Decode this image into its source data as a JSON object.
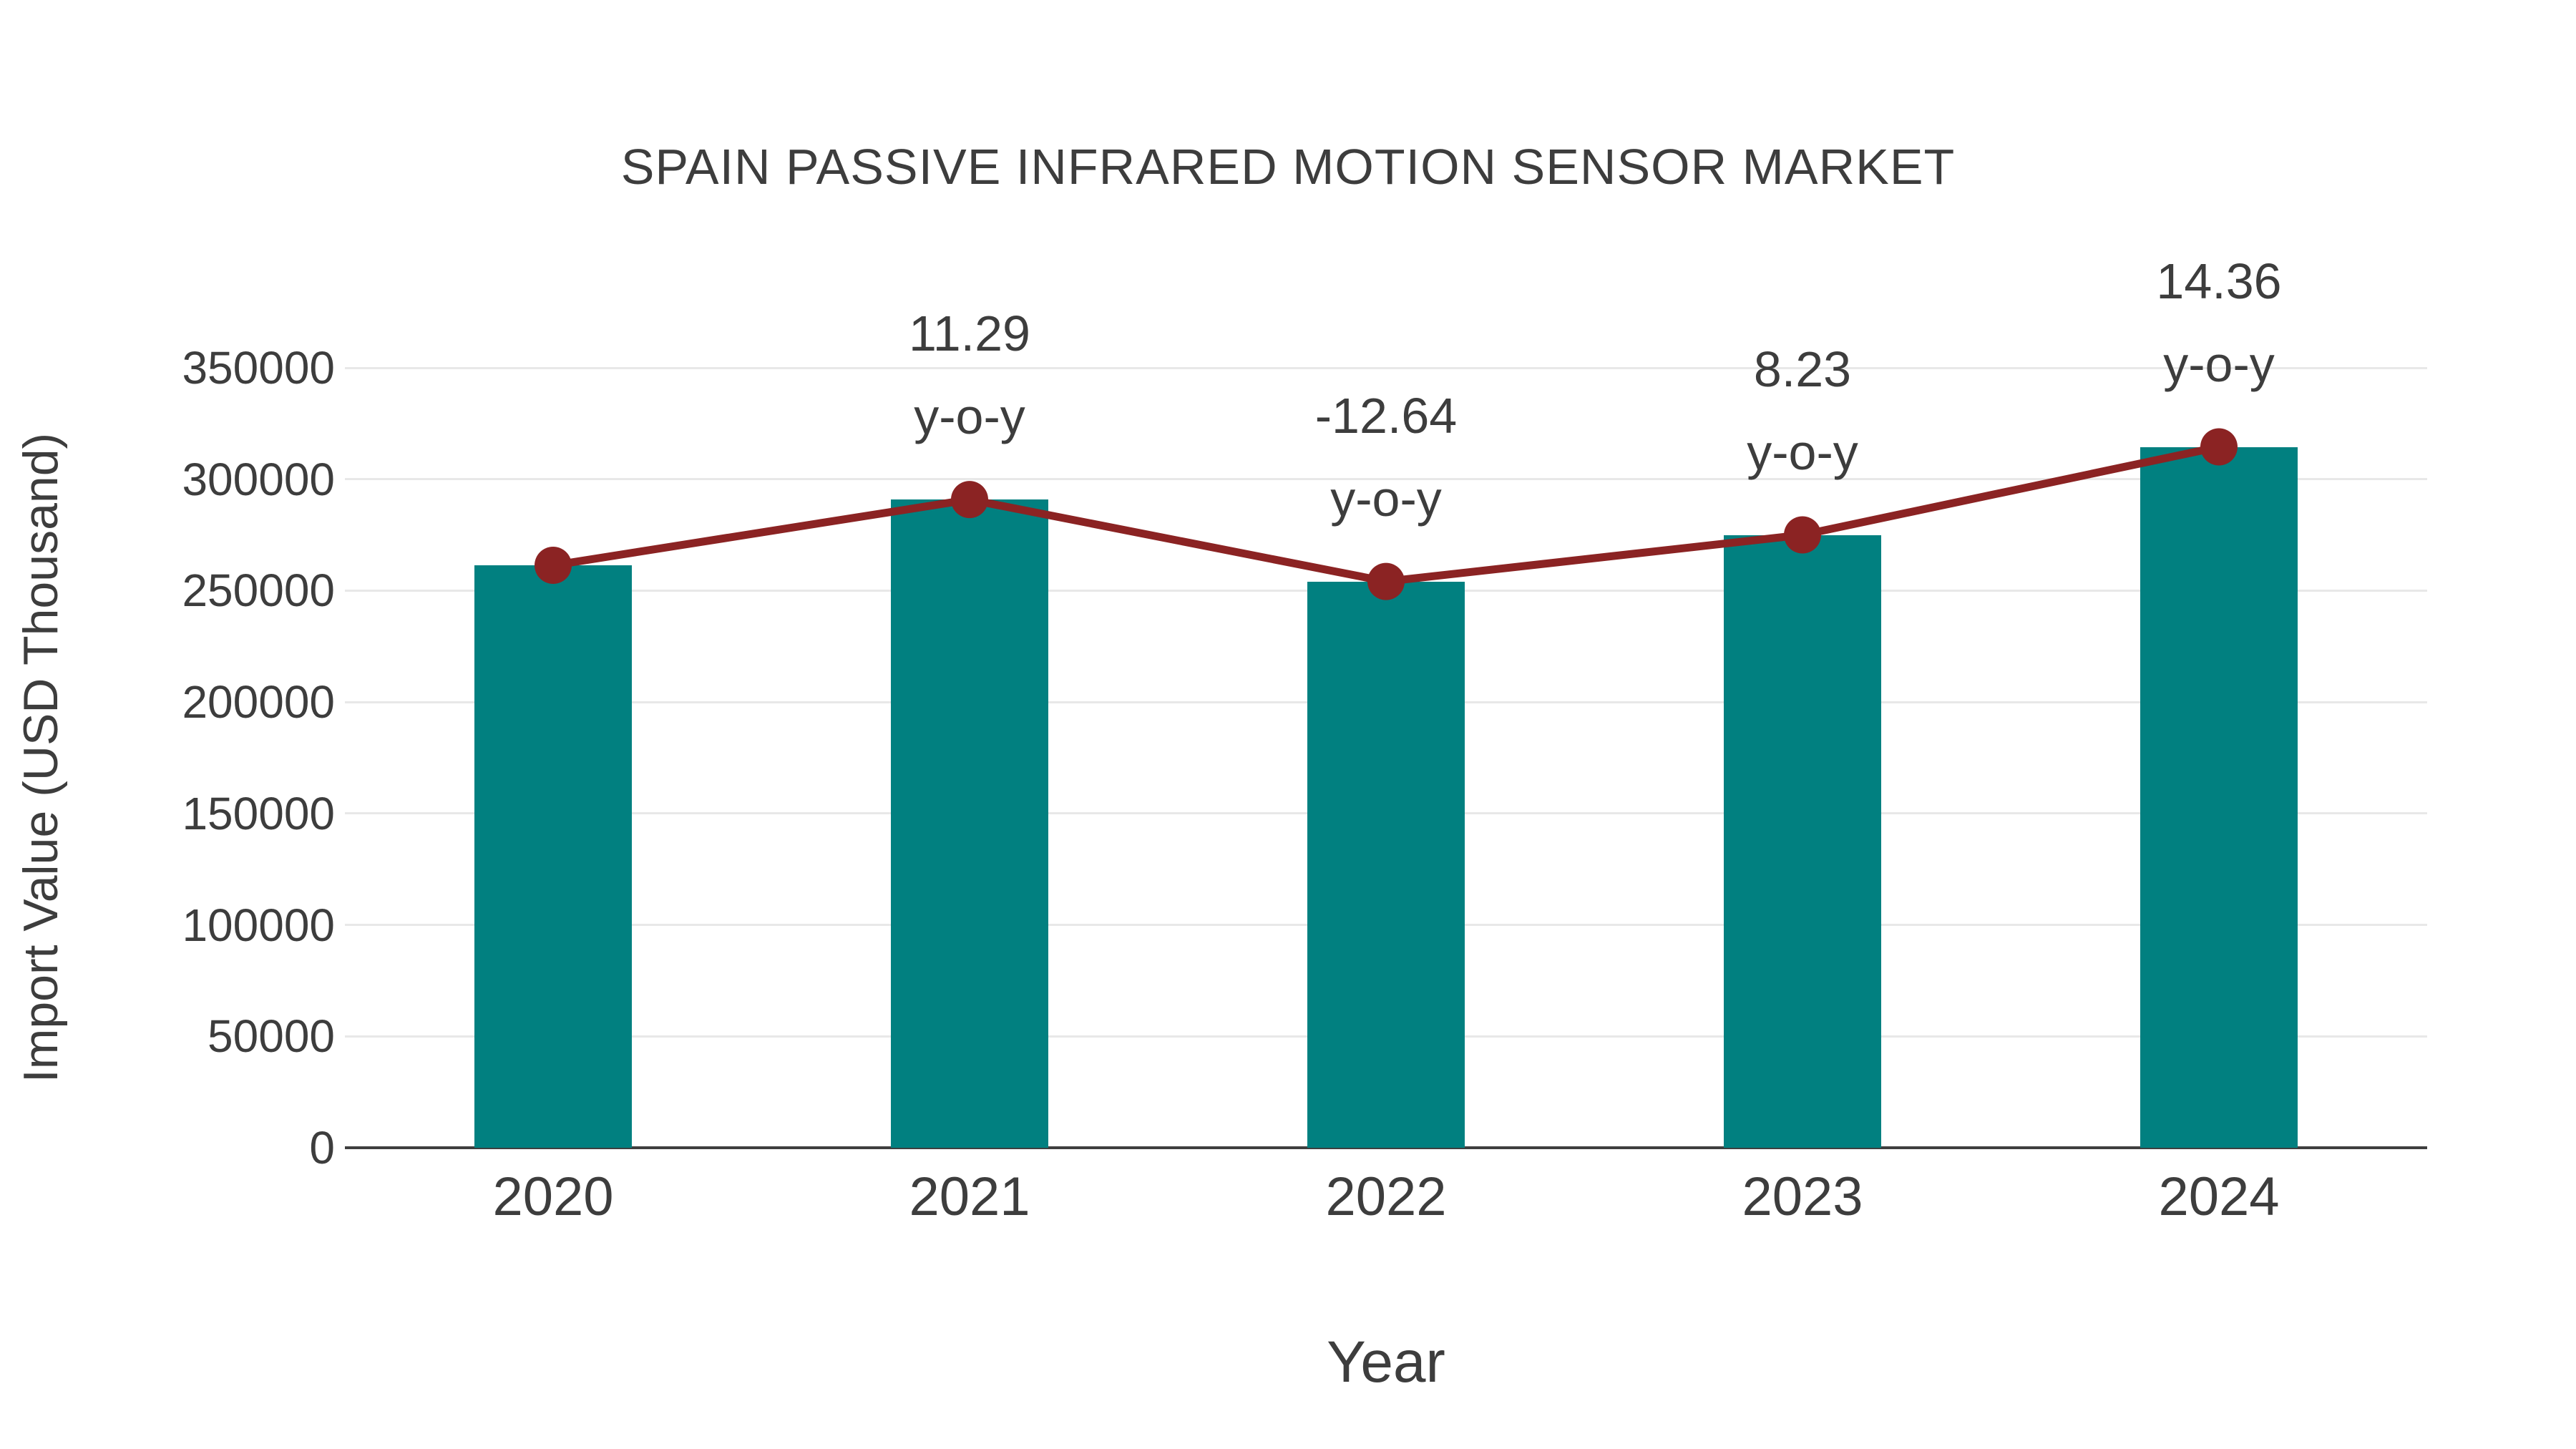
{
  "chart": {
    "background_color": "#ffffff",
    "text_color": "#3d3d3d",
    "grid_color": "#e8e8e8",
    "axis_color": "#3f3f3f"
  },
  "chart_data": {
    "type": "bar",
    "title": "SPAIN PASSIVE INFRARED MOTION SENSOR MARKET",
    "xlabel": "Year",
    "ylabel": "Import Value (USD Thousand)",
    "categories": [
      "2020",
      "2021",
      "2022",
      "2023",
      "2024"
    ],
    "series": [
      {
        "name": "Import Value",
        "type": "bar",
        "values": [
          261366,
          290874,
          254108,
          275021,
          314513
        ],
        "color": "#018080"
      },
      {
        "name": "Import Value trend (y-o-y % labeled)",
        "type": "line",
        "values": [
          261366,
          290874,
          254108,
          275021,
          314513
        ],
        "yoy_percent": [
          null,
          11.29,
          -12.64,
          8.23,
          14.36
        ],
        "color": "#8b2323",
        "marker": "circle"
      }
    ],
    "annotations": [
      {
        "category": "2021",
        "line1": "11.29",
        "line2": "y-o-y"
      },
      {
        "category": "2022",
        "line1": "-12.64",
        "line2": "y-o-y"
      },
      {
        "category": "2023",
        "line1": "8.23",
        "line2": "y-o-y"
      },
      {
        "category": "2024",
        "line1": "14.36",
        "line2": "y-o-y"
      }
    ],
    "ylim": [
      0,
      350000
    ],
    "ytick_step": 50000,
    "ytick_labels": [
      "0",
      "50000",
      "100000",
      "150000",
      "200000",
      "250000",
      "300000",
      "350000"
    ],
    "grid": "horizontal",
    "legend": "none"
  }
}
